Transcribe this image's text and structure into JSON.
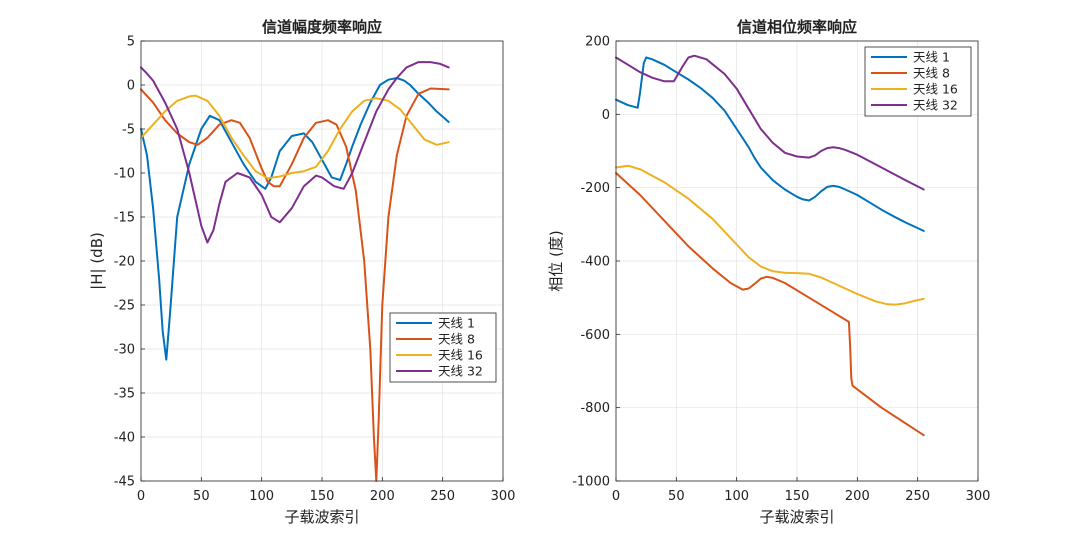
{
  "chart_data": [
    {
      "type": "line",
      "title": "信道幅度频率响应",
      "xlabel": "子载波索引",
      "ylabel": "|H| (dB)",
      "xlim": [
        0,
        300
      ],
      "ylim": [
        -45,
        5
      ],
      "xticks": [
        0,
        50,
        100,
        150,
        200,
        250,
        300
      ],
      "yticks": [
        5,
        0,
        -5,
        -10,
        -15,
        -20,
        -25,
        -30,
        -35,
        -40,
        -45
      ],
      "grid": true,
      "legend": "middle-right",
      "series": [
        {
          "name": "天线 1",
          "color": "#0072BD",
          "x": [
            0,
            5,
            10,
            15,
            18,
            21,
            24,
            30,
            40,
            50,
            57,
            65,
            75,
            85,
            95,
            103,
            108,
            115,
            125,
            135,
            142,
            150,
            158,
            165,
            170,
            175,
            182,
            190,
            198,
            205,
            212,
            218,
            223,
            230,
            238,
            245,
            255
          ],
          "y": [
            -5,
            -8,
            -14,
            -22,
            -28,
            -31.2,
            -26,
            -15,
            -9,
            -5,
            -3.5,
            -4,
            -6.5,
            -9,
            -11,
            -11.8,
            -10.5,
            -7.5,
            -5.8,
            -5.5,
            -6.5,
            -8.5,
            -10.5,
            -10.8,
            -9,
            -7,
            -4.5,
            -2,
            0,
            0.6,
            0.8,
            0.5,
            0,
            -1,
            -2,
            -3,
            -4.2
          ]
        },
        {
          "name": "天线 8",
          "color": "#D95319",
          "x": [
            0,
            10,
            20,
            30,
            40,
            47,
            55,
            65,
            75,
            82,
            90,
            100,
            105,
            110,
            115,
            125,
            135,
            145,
            155,
            162,
            170,
            178,
            185,
            190,
            193,
            195,
            197,
            200,
            205,
            212,
            220,
            230,
            240,
            255
          ],
          "y": [
            -0.5,
            -2,
            -4,
            -5.5,
            -6.5,
            -6.8,
            -6,
            -4.5,
            -4,
            -4.3,
            -6,
            -9.5,
            -11,
            -11.5,
            -11.5,
            -9,
            -6,
            -4.3,
            -4,
            -4.5,
            -7,
            -12,
            -20,
            -30,
            -40,
            -45,
            -38,
            -25,
            -15,
            -8,
            -3.5,
            -1,
            -0.4,
            -0.5
          ]
        },
        {
          "name": "天线 16",
          "color": "#EDB120",
          "x": [
            0,
            10,
            20,
            30,
            40,
            45,
            55,
            65,
            75,
            85,
            95,
            105,
            115,
            125,
            135,
            145,
            155,
            165,
            175,
            185,
            195,
            205,
            215,
            225,
            235,
            245,
            255
          ],
          "y": [
            -6,
            -4.5,
            -3,
            -1.8,
            -1.3,
            -1.2,
            -1.8,
            -3.5,
            -6,
            -8,
            -9.8,
            -10.6,
            -10.4,
            -10,
            -9.8,
            -9.3,
            -7.5,
            -5,
            -3,
            -1.8,
            -1.5,
            -1.8,
            -2.8,
            -4.5,
            -6.2,
            -6.8,
            -6.5
          ]
        },
        {
          "name": "天线 32",
          "color": "#7E2F8E",
          "x": [
            0,
            5,
            10,
            20,
            30,
            40,
            45,
            50,
            55,
            60,
            65,
            70,
            80,
            90,
            100,
            108,
            115,
            125,
            135,
            145,
            150,
            160,
            168,
            175,
            185,
            195,
            205,
            212,
            220,
            230,
            240,
            248,
            255
          ],
          "y": [
            2,
            1.3,
            0.5,
            -2,
            -5,
            -10,
            -13,
            -16,
            -17.9,
            -16.5,
            -13.5,
            -11,
            -10,
            -10.5,
            -12.5,
            -15,
            -15.6,
            -14,
            -11.5,
            -10.3,
            -10.5,
            -11.5,
            -11.8,
            -10,
            -6.5,
            -3,
            -0.5,
            0.8,
            2,
            2.6,
            2.6,
            2.4,
            2
          ]
        }
      ]
    },
    {
      "type": "line",
      "title": "信道相位频率响应",
      "xlabel": "子载波索引",
      "ylabel": "相位 (度)",
      "xlim": [
        0,
        300
      ],
      "ylim": [
        -1000,
        200
      ],
      "xticks": [
        0,
        50,
        100,
        150,
        200,
        250,
        300
      ],
      "yticks": [
        200,
        0,
        -200,
        -400,
        -600,
        -800,
        -1000
      ],
      "grid": true,
      "legend": "top-right",
      "series": [
        {
          "name": "天线 1",
          "color": "#0072BD",
          "x": [
            0,
            10,
            18,
            20,
            23,
            25,
            30,
            40,
            50,
            60,
            70,
            80,
            90,
            100,
            110,
            115,
            120,
            130,
            140,
            150,
            155,
            160,
            165,
            170,
            175,
            180,
            185,
            190,
            200,
            210,
            220,
            230,
            240,
            255
          ],
          "y": [
            40,
            25,
            18,
            60,
            140,
            155,
            150,
            135,
            115,
            95,
            72,
            45,
            10,
            -40,
            -90,
            -120,
            -145,
            -180,
            -205,
            -225,
            -232,
            -235,
            -225,
            -210,
            -198,
            -195,
            -198,
            -205,
            -220,
            -240,
            -260,
            -278,
            -295,
            -318
          ]
        },
        {
          "name": "天线 8",
          "color": "#D95319",
          "x": [
            0,
            20,
            40,
            60,
            80,
            95,
            105,
            110,
            115,
            120,
            125,
            130,
            140,
            160,
            180,
            193,
            194,
            195,
            196,
            200,
            220,
            255
          ],
          "y": [
            -160,
            -220,
            -290,
            -360,
            -420,
            -460,
            -478,
            -475,
            -462,
            -448,
            -443,
            -446,
            -460,
            -500,
            -540,
            -566,
            -630,
            -720,
            -740,
            -750,
            -800,
            -875
          ]
        },
        {
          "name": "天线 16",
          "color": "#EDB120",
          "x": [
            0,
            10,
            20,
            40,
            60,
            80,
            100,
            110,
            120,
            130,
            140,
            150,
            160,
            170,
            180,
            200,
            215,
            225,
            232,
            240,
            248,
            255
          ],
          "y": [
            -145,
            -140,
            -150,
            -185,
            -230,
            -285,
            -355,
            -390,
            -415,
            -428,
            -432,
            -433,
            -435,
            -445,
            -460,
            -490,
            -510,
            -518,
            -519,
            -515,
            -508,
            -503
          ]
        },
        {
          "name": "天线 32",
          "color": "#7E2F8E",
          "x": [
            0,
            10,
            20,
            30,
            40,
            48,
            55,
            60,
            65,
            75,
            90,
            100,
            110,
            120,
            130,
            140,
            150,
            160,
            165,
            170,
            175,
            180,
            185,
            190,
            200,
            220,
            240,
            255
          ],
          "y": [
            155,
            135,
            115,
            100,
            90,
            90,
            130,
            155,
            160,
            150,
            110,
            70,
            15,
            -40,
            -78,
            -105,
            -115,
            -118,
            -112,
            -100,
            -92,
            -90,
            -92,
            -97,
            -110,
            -145,
            -180,
            -205
          ]
        }
      ]
    }
  ]
}
